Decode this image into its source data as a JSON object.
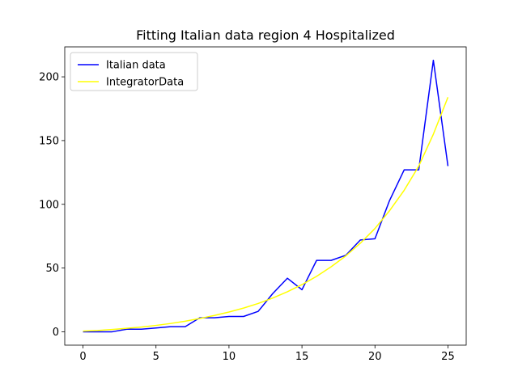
{
  "chart_data": {
    "type": "line",
    "title": "Fitting Italian data region 4 Hospitalized",
    "xlabel": "",
    "ylabel": "",
    "xlim": [
      -1.25,
      26.25
    ],
    "ylim": [
      -10.5,
      223.5
    ],
    "xticks": [
      0,
      5,
      10,
      15,
      20,
      25
    ],
    "yticks": [
      0,
      50,
      100,
      150,
      200
    ],
    "x": [
      0,
      1,
      2,
      3,
      4,
      5,
      6,
      7,
      8,
      9,
      10,
      11,
      12,
      13,
      14,
      15,
      16,
      17,
      18,
      19,
      20,
      21,
      22,
      23,
      24,
      25
    ],
    "series": [
      {
        "name": "Italian data",
        "color": "#0000ff",
        "values": [
          0,
          0,
          0,
          2,
          2,
          3,
          4,
          4,
          11,
          11,
          12,
          12,
          16,
          30,
          42,
          33,
          56,
          56,
          60,
          72,
          73,
          103,
          127,
          127,
          213,
          130
        ]
      },
      {
        "name": "IntegratorData",
        "color": "#ffff00",
        "values": [
          0.5,
          1,
          1.8,
          2.7,
          3.7,
          5,
          6.5,
          8.3,
          10.4,
          12.8,
          15.5,
          18.6,
          22.2,
          26.5,
          31.4,
          37,
          43.5,
          51,
          59.5,
          69.5,
          81,
          95,
          111,
          130,
          155,
          184
        ]
      }
    ],
    "legend": "upper-left",
    "grid": false
  }
}
